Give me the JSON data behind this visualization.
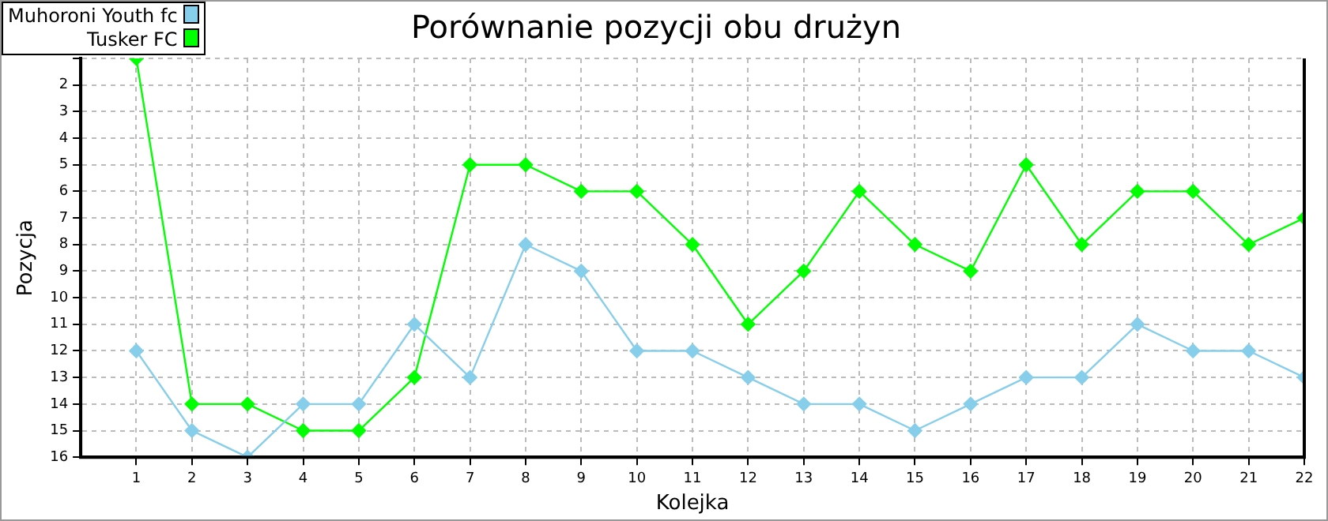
{
  "chart_data": {
    "type": "line",
    "title": "Porównanie pozycji obu drużyn",
    "xlabel": "Kolejka",
    "ylabel": "Pozycja",
    "x": [
      1,
      2,
      3,
      4,
      5,
      6,
      7,
      8,
      9,
      10,
      11,
      12,
      13,
      14,
      15,
      16,
      17,
      18,
      19,
      20,
      21,
      22
    ],
    "xlim": [
      0,
      22
    ],
    "xticks": [
      1,
      2,
      3,
      4,
      5,
      6,
      7,
      8,
      9,
      10,
      11,
      12,
      13,
      14,
      15,
      16,
      17,
      18,
      19,
      20,
      21,
      22
    ],
    "ylim": [
      16,
      1
    ],
    "yticks": [
      {
        "value": 1,
        "label": null
      },
      2,
      3,
      4,
      5,
      6,
      7,
      8,
      9,
      10,
      11,
      12,
      13,
      14,
      15,
      16
    ],
    "grid": true,
    "legend": "top left",
    "marker": "diamond",
    "line_style": "solid",
    "series": [
      {
        "name": "Muhoroni Youth fc",
        "color": "#87ceeb",
        "values": [
          12,
          15,
          16,
          14,
          14,
          11,
          13,
          8,
          9,
          12,
          12,
          13,
          14,
          14,
          15,
          14,
          13,
          13,
          11,
          12,
          12,
          13
        ]
      },
      {
        "name": "Tusker FC",
        "color": "#00ff00",
        "values": [
          1,
          14,
          14,
          15,
          15,
          13,
          5,
          5,
          6,
          6,
          8,
          11,
          9,
          6,
          8,
          9,
          5,
          8,
          6,
          6,
          8,
          7
        ]
      }
    ]
  }
}
